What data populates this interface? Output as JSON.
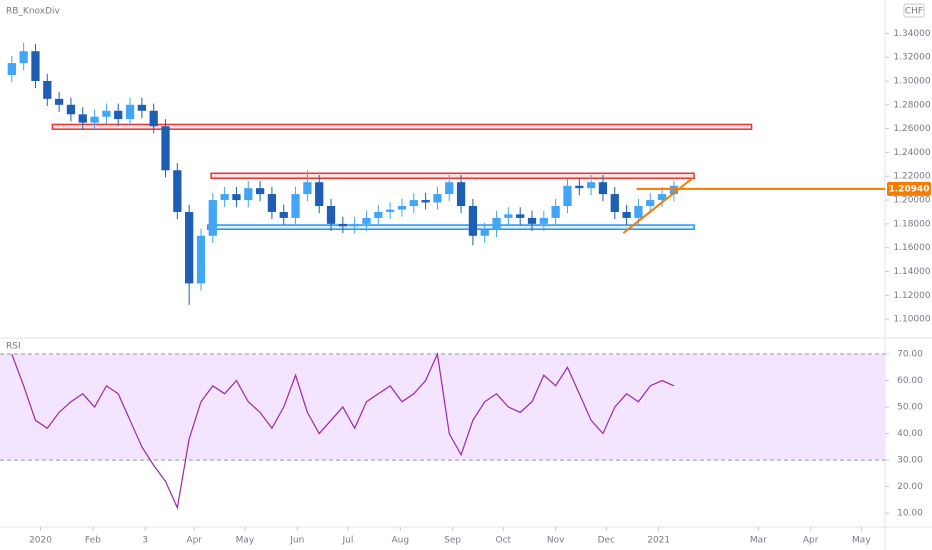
{
  "header": {
    "indicator": "RB_KnoxDiv",
    "currency": "CHF"
  },
  "chart_data": [
    {
      "type": "candlestick",
      "x": [
        -17,
        -10,
        -3,
        4,
        11,
        18,
        25,
        32,
        39,
        46,
        53,
        60,
        67,
        74,
        81,
        88,
        95,
        102,
        109,
        116,
        123,
        130,
        137,
        144,
        151,
        158,
        165,
        172,
        179,
        186,
        193,
        200,
        207,
        214,
        221,
        228,
        235,
        242,
        249,
        256,
        263,
        270,
        277,
        284,
        291,
        298,
        305,
        312,
        319,
        326,
        333,
        340,
        347,
        354,
        361,
        368,
        375
      ],
      "open": [
        1.305,
        1.315,
        1.325,
        1.3,
        1.285,
        1.28,
        1.272,
        1.265,
        1.27,
        1.275,
        1.268,
        1.28,
        1.275,
        1.262,
        1.225,
        1.19,
        1.13,
        1.17,
        1.2,
        1.205,
        1.2,
        1.21,
        1.205,
        1.19,
        1.185,
        1.205,
        1.215,
        1.195,
        1.18,
        1.178,
        1.18,
        1.185,
        1.19,
        1.192,
        1.195,
        1.2,
        1.198,
        1.205,
        1.215,
        1.195,
        1.17,
        1.175,
        1.185,
        1.188,
        1.185,
        1.18,
        1.185,
        1.195,
        1.212,
        1.21,
        1.215,
        1.205,
        1.19,
        1.185,
        1.195,
        1.2,
        1.205
      ],
      "high": [
        1.321,
        1.332,
        1.331,
        1.306,
        1.291,
        1.286,
        1.278,
        1.276,
        1.281,
        1.281,
        1.286,
        1.286,
        1.281,
        1.268,
        1.231,
        1.196,
        1.176,
        1.206,
        1.211,
        1.211,
        1.216,
        1.216,
        1.211,
        1.196,
        1.211,
        1.225,
        1.221,
        1.201,
        1.186,
        1.186,
        1.191,
        1.196,
        1.198,
        1.201,
        1.206,
        1.206,
        1.211,
        1.221,
        1.221,
        1.201,
        1.181,
        1.191,
        1.194,
        1.194,
        1.191,
        1.191,
        1.201,
        1.218,
        1.218,
        1.221,
        1.221,
        1.211,
        1.196,
        1.201,
        1.206,
        1.211,
        1.216
      ],
      "low": [
        1.299,
        1.309,
        1.294,
        1.279,
        1.274,
        1.266,
        1.259,
        1.259,
        1.264,
        1.262,
        1.262,
        1.269,
        1.256,
        1.219,
        1.184,
        1.112,
        1.124,
        1.164,
        1.194,
        1.194,
        1.194,
        1.199,
        1.184,
        1.179,
        1.179,
        1.199,
        1.189,
        1.174,
        1.172,
        1.172,
        1.174,
        1.179,
        1.184,
        1.186,
        1.189,
        1.192,
        1.192,
        1.199,
        1.189,
        1.162,
        1.164,
        1.169,
        1.179,
        1.179,
        1.174,
        1.174,
        1.179,
        1.189,
        1.204,
        1.204,
        1.199,
        1.184,
        1.179,
        1.179,
        1.189,
        1.194,
        1.199
      ],
      "close": [
        1.315,
        1.325,
        1.3,
        1.285,
        1.28,
        1.272,
        1.265,
        1.27,
        1.275,
        1.268,
        1.28,
        1.275,
        1.262,
        1.225,
        1.19,
        1.13,
        1.17,
        1.2,
        1.205,
        1.2,
        1.21,
        1.205,
        1.19,
        1.185,
        1.205,
        1.215,
        1.195,
        1.18,
        1.178,
        1.18,
        1.185,
        1.19,
        1.192,
        1.195,
        1.2,
        1.198,
        1.205,
        1.215,
        1.195,
        1.17,
        1.175,
        1.185,
        1.188,
        1.185,
        1.18,
        1.185,
        1.195,
        1.212,
        1.21,
        1.215,
        1.205,
        1.19,
        1.185,
        1.195,
        1.2,
        1.205,
        1.212
      ],
      "up_color": "#42a5f5",
      "down_color": "#1e5fb4",
      "xlim": [
        -24,
        500
      ],
      "ylim": [
        1.085,
        1.368
      ],
      "yticks": [
        {
          "value": 1.1,
          "label": "1.10000"
        },
        {
          "value": 1.12,
          "label": "1.12000"
        },
        {
          "value": 1.14,
          "label": "1.14000"
        },
        {
          "value": 1.16,
          "label": "1.16000"
        },
        {
          "value": 1.18,
          "label": "1.18000"
        },
        {
          "value": 1.2,
          "label": "1.20000"
        },
        {
          "value": 1.22,
          "label": "1.22000"
        },
        {
          "value": 1.24,
          "label": "1.24000"
        },
        {
          "value": 1.26,
          "label": "1.26000"
        },
        {
          "value": 1.28,
          "label": "1.28000"
        },
        {
          "value": 1.3,
          "label": "1.30000"
        },
        {
          "value": 1.32,
          "label": "1.32000"
        },
        {
          "value": 1.34,
          "label": "1.34000"
        }
      ],
      "zones": [
        {
          "x": [
            7,
            421
          ],
          "y": [
            1.2595,
            1.2635
          ],
          "color": "#e53935"
        },
        {
          "x": [
            101,
            387
          ],
          "y": [
            1.2183,
            1.2225
          ],
          "color": "#e53935"
        },
        {
          "x": [
            99,
            387
          ],
          "y": [
            1.1755,
            1.179
          ],
          "color": "#2196f3"
        }
      ],
      "trendline": {
        "x": [
          345,
          386
        ],
        "y": [
          1.1722,
          1.2183
        ],
        "color": "#f57c00"
      },
      "price_line": {
        "x": [
          353,
          500
        ],
        "value": 1.2094,
        "label": "1.20940",
        "color": "#f57c00"
      }
    },
    {
      "type": "line",
      "title": "RSI",
      "x": [
        -17,
        -10,
        -3,
        4,
        11,
        18,
        25,
        32,
        39,
        46,
        53,
        60,
        67,
        74,
        81,
        88,
        95,
        102,
        109,
        116,
        123,
        130,
        137,
        144,
        151,
        158,
        165,
        172,
        179,
        186,
        193,
        200,
        207,
        214,
        221,
        228,
        235,
        242,
        249,
        256,
        263,
        270,
        277,
        284,
        291,
        298,
        305,
        312,
        319,
        326,
        333,
        340,
        347,
        354,
        361,
        368,
        375
      ],
      "values": [
        70,
        58,
        45,
        42,
        48,
        52,
        55,
        50,
        58,
        55,
        45,
        35,
        28,
        22,
        12,
        38,
        52,
        58,
        55,
        60,
        52,
        48,
        42,
        50,
        62,
        48,
        40,
        45,
        50,
        42,
        52,
        55,
        58,
        52,
        55,
        60,
        70,
        40,
        32,
        45,
        52,
        55,
        50,
        48,
        52,
        62,
        58,
        65,
        55,
        45,
        40,
        50,
        55,
        52,
        58,
        60,
        58
      ],
      "color": "#9c27b0",
      "band": [
        30,
        70
      ],
      "band_color": "#f3e5ff",
      "xlim": [
        -24,
        500
      ],
      "ylim": [
        5.5,
        75.3
      ],
      "yticks": [
        {
          "value": 10,
          "label": "10.00"
        },
        {
          "value": 20,
          "label": "20.00"
        },
        {
          "value": 30,
          "label": "30.00"
        },
        {
          "value": 40,
          "label": "40.00"
        },
        {
          "value": 50,
          "label": "50.00"
        },
        {
          "value": 60,
          "label": "60.00"
        },
        {
          "value": 70,
          "label": "70.00"
        }
      ],
      "xticks": [
        {
          "value": 0,
          "label": "2020"
        },
        {
          "value": 31,
          "label": "Feb"
        },
        {
          "value": 62,
          "label": "3"
        },
        {
          "value": 91,
          "label": "Apr"
        },
        {
          "value": 121,
          "label": "May"
        },
        {
          "value": 152,
          "label": "Jun"
        },
        {
          "value": 182,
          "label": "Jul"
        },
        {
          "value": 213,
          "label": "Aug"
        },
        {
          "value": 244,
          "label": "Sep"
        },
        {
          "value": 274,
          "label": "Oct"
        },
        {
          "value": 305,
          "label": "Nov"
        },
        {
          "value": 335,
          "label": "Dec"
        },
        {
          "value": 366,
          "label": "2021"
        },
        {
          "value": 425,
          "label": "Mar"
        },
        {
          "value": 456,
          "label": "Apr"
        },
        {
          "value": 486,
          "label": "May"
        }
      ]
    }
  ]
}
